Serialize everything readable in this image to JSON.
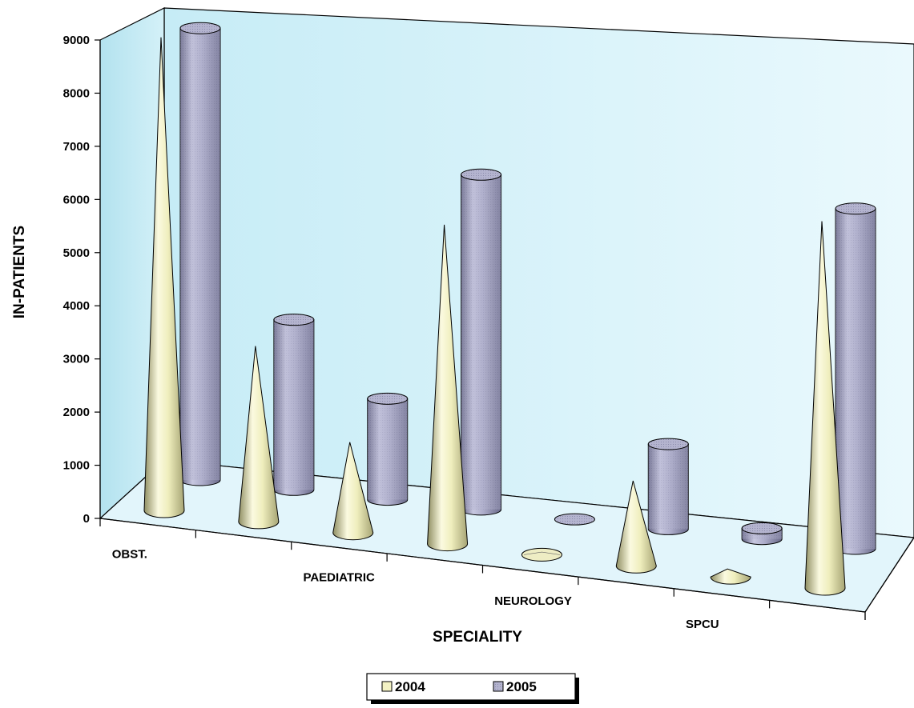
{
  "chart_data": {
    "type": "bar",
    "style": "3d-cone-and-cylinder",
    "title": "",
    "xlabel": "SPECIALITY",
    "ylabel": "IN-PATIENTS",
    "ylim": [
      0,
      9000
    ],
    "yticks": [
      "0",
      "1000",
      "2000",
      "3000",
      "4000",
      "5000",
      "6000",
      "7000",
      "8000",
      "9000"
    ],
    "categories": [
      "OBST.",
      "",
      "PAEDIATRIC",
      "",
      "NEUROLOGY",
      "",
      "SPCU",
      ""
    ],
    "series": [
      {
        "name": "2004",
        "values": [
          8900,
          3300,
          1700,
          6000,
          50,
          1600,
          150,
          6900
        ]
      },
      {
        "name": "2005",
        "values": [
          8500,
          3200,
          1900,
          6300,
          0,
          1600,
          200,
          6400
        ]
      }
    ],
    "grid": false,
    "legend_position": "bottom",
    "colors": {
      "2004": "#f3f2c4",
      "2005": "#a8a8c8",
      "wall": "#cfeef8",
      "floor": "#e4f6fb"
    }
  }
}
